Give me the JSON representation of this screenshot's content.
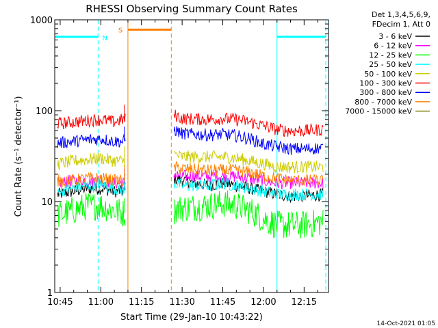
{
  "chart_data": {
    "type": "line",
    "title": "RHESSI Observing Summary Count Rates",
    "xlabel": "Start Time (29-Jan-10 10:43:22)",
    "ylabel": "Count Rate (s⁻¹ detector⁻¹)",
    "y_scale": "log",
    "ylim": [
      1,
      1000
    ],
    "xlim": [
      "10:43",
      "12:24"
    ],
    "x_ticks": [
      "10:45",
      "11:00",
      "11:15",
      "11:30",
      "11:45",
      "12:00",
      "12:15"
    ],
    "y_ticks": [
      "1",
      "10",
      "100",
      "1000"
    ],
    "legend_header": [
      "Det 1,3,4,5,6,9,",
      "FDecim 1, Att 0"
    ],
    "footer": "14-Oct-2021 01:05",
    "data_gap": [
      "11:10",
      "11:27"
    ],
    "series": [
      {
        "name": "3 - 6 keV",
        "color": "#000000",
        "x": [
          "10:44",
          "10:50",
          "10:55",
          "11:00",
          "11:05",
          "11:08",
          "11:27",
          "11:30",
          "11:40",
          "11:45",
          "11:50",
          "11:55",
          "12:00",
          "12:05",
          "12:10",
          "12:15",
          "12:22"
        ],
        "values": [
          12,
          13,
          14,
          14,
          13,
          13,
          18,
          17,
          15,
          16,
          15,
          14,
          13,
          12,
          11.5,
          11.5,
          12
        ]
      },
      {
        "name": "6 - 12 keV",
        "color": "#ff00ff",
        "x": [
          "10:44",
          "10:50",
          "10:55",
          "11:00",
          "11:05",
          "11:08",
          "11:27",
          "11:30",
          "11:40",
          "11:45",
          "11:50",
          "11:55",
          "12:00",
          "12:05",
          "12:10",
          "12:15",
          "12:22"
        ],
        "values": [
          16,
          17,
          17,
          17,
          16,
          16,
          20,
          19,
          19,
          19,
          19,
          18,
          17,
          16,
          16,
          16,
          16
        ]
      },
      {
        "name": "12 - 25 keV",
        "color": "#00ff00",
        "x": [
          "10:44",
          "10:50",
          "10:55",
          "11:00",
          "11:05",
          "11:08",
          "11:27",
          "11:30",
          "11:40",
          "11:45",
          "11:50",
          "11:55",
          "12:00",
          "12:05",
          "12:10",
          "12:15",
          "12:22"
        ],
        "values": [
          7,
          8,
          9,
          9,
          8,
          7.5,
          8,
          8.5,
          9,
          9.5,
          9,
          8,
          6.5,
          5.5,
          5.5,
          5.5,
          6
        ]
      },
      {
        "name": "25 - 50 keV",
        "color": "#00ffff",
        "x": [
          "10:44",
          "10:50",
          "10:55",
          "11:00",
          "11:05",
          "11:08",
          "11:27",
          "11:30",
          "11:40",
          "11:45",
          "11:50",
          "11:55",
          "12:00",
          "12:05",
          "12:10",
          "12:15",
          "12:22"
        ],
        "values": [
          13,
          14,
          15,
          15,
          14,
          13,
          16,
          15,
          15,
          16,
          15,
          14,
          13,
          12,
          12,
          12,
          12
        ]
      },
      {
        "name": "50 - 100 keV",
        "color": "#cccc00",
        "x": [
          "10:44",
          "10:50",
          "10:55",
          "11:00",
          "11:05",
          "11:08",
          "11:27",
          "11:30",
          "11:40",
          "11:45",
          "11:50",
          "11:55",
          "12:00",
          "12:05",
          "12:10",
          "12:15",
          "12:22"
        ],
        "values": [
          26,
          28,
          29,
          30,
          28,
          28,
          33,
          31,
          31,
          31,
          30,
          28,
          26,
          24,
          24,
          24,
          24
        ]
      },
      {
        "name": "100 - 300 keV",
        "color": "#ff0000",
        "x": [
          "10:44",
          "10:50",
          "10:55",
          "11:00",
          "11:05",
          "11:08",
          "11:27",
          "11:30",
          "11:40",
          "11:45",
          "11:50",
          "11:55",
          "12:00",
          "12:05",
          "12:10",
          "12:15",
          "12:22"
        ],
        "values": [
          72,
          75,
          78,
          80,
          75,
          80,
          90,
          82,
          80,
          82,
          80,
          75,
          68,
          62,
          60,
          60,
          62
        ]
      },
      {
        "name": "300 - 800 keV",
        "color": "#0000ff",
        "x": [
          "10:44",
          "10:50",
          "10:55",
          "11:00",
          "11:05",
          "11:08",
          "11:27",
          "11:30",
          "11:40",
          "11:45",
          "11:50",
          "11:55",
          "12:00",
          "12:05",
          "12:10",
          "12:15",
          "12:22"
        ],
        "values": [
          44,
          46,
          48,
          49,
          46,
          46,
          62,
          56,
          54,
          55,
          53,
          49,
          43,
          40,
          38,
          38,
          39
        ]
      },
      {
        "name": "800 - 7000 keV",
        "color": "#ff8000",
        "x": [
          "10:44",
          "10:50",
          "10:55",
          "11:00",
          "11:05",
          "11:08",
          "11:27",
          "11:30",
          "11:40",
          "11:45",
          "11:50",
          "11:55",
          "12:00",
          "12:05",
          "12:10",
          "12:15",
          "12:22"
        ],
        "values": [
          17,
          17,
          18,
          18,
          17,
          17,
          24,
          23,
          22,
          22,
          22,
          21,
          19,
          18,
          17,
          17,
          17
        ]
      },
      {
        "name": "7000 - 15000 keV",
        "color": "#808000",
        "x": [],
        "values": []
      }
    ],
    "annotations": {
      "N_label": "N",
      "S_label": "S",
      "N_color": "#00ffff",
      "S_color": "#ff8000",
      "flags": [
        {
          "label": "N",
          "color": "#00ffff",
          "start": "10:43",
          "end": "10:59",
          "level": 650
        },
        {
          "label": "N",
          "color": "#00ffff",
          "start": "12:05",
          "end": "12:23",
          "level": 650
        },
        {
          "label": "S",
          "color": "#ff8000",
          "start": "11:10",
          "end": "11:26",
          "level": 780
        }
      ]
    }
  }
}
